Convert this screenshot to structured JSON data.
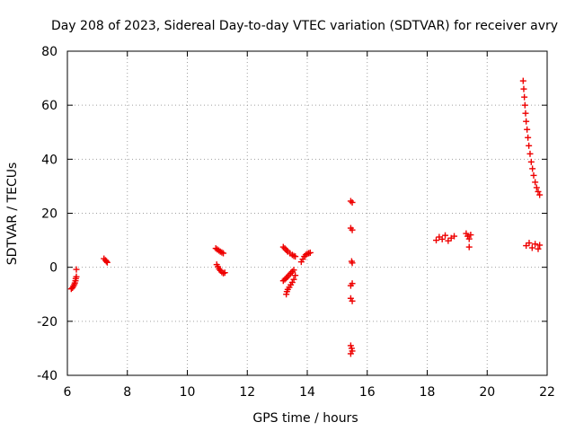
{
  "chart_data": {
    "type": "scatter",
    "title": "Day 208 of 2023, Sidereal Day-to-day VTEC variation (SDTVAR) for receiver avry",
    "xlabel": "GPS time / hours",
    "ylabel": "SDTVAR / TECUs",
    "xlim": [
      6,
      22
    ],
    "ylim": [
      -40,
      80
    ],
    "xticks": [
      6,
      8,
      10,
      12,
      14,
      16,
      18,
      20,
      22
    ],
    "yticks": [
      -40,
      -20,
      0,
      20,
      40,
      60,
      80
    ],
    "grid": true,
    "marker": "+",
    "color": "#ee0000",
    "series": [
      {
        "name": "SDTVAR",
        "points": [
          [
            6.13,
            -8.0
          ],
          [
            6.17,
            -7.6
          ],
          [
            6.2,
            -7.0
          ],
          [
            6.23,
            -6.4
          ],
          [
            6.25,
            -5.8
          ],
          [
            6.27,
            -5.0
          ],
          [
            6.28,
            -4.2
          ],
          [
            6.3,
            -3.5
          ],
          [
            6.3,
            -0.8
          ],
          [
            7.22,
            3.2
          ],
          [
            7.27,
            2.6
          ],
          [
            7.3,
            2.2
          ],
          [
            7.33,
            1.8
          ],
          [
            10.95,
            7.0
          ],
          [
            11.0,
            6.6
          ],
          [
            11.05,
            6.2
          ],
          [
            11.1,
            5.8
          ],
          [
            11.15,
            5.5
          ],
          [
            11.2,
            5.2
          ],
          [
            10.98,
            1.0
          ],
          [
            11.02,
            0.2
          ],
          [
            11.06,
            -0.6
          ],
          [
            11.1,
            -1.2
          ],
          [
            11.15,
            -1.8
          ],
          [
            11.2,
            -2.2
          ],
          [
            11.25,
            -2.0
          ],
          [
            13.2,
            7.5
          ],
          [
            13.25,
            7.0
          ],
          [
            13.3,
            6.4
          ],
          [
            13.35,
            5.8
          ],
          [
            13.42,
            5.2
          ],
          [
            13.5,
            4.6
          ],
          [
            13.55,
            4.2
          ],
          [
            13.6,
            4.0
          ],
          [
            13.2,
            -5.0
          ],
          [
            13.25,
            -4.5
          ],
          [
            13.3,
            -4.0
          ],
          [
            13.35,
            -3.4
          ],
          [
            13.4,
            -2.8
          ],
          [
            13.45,
            -2.2
          ],
          [
            13.5,
            -1.6
          ],
          [
            13.55,
            -1.0
          ],
          [
            13.3,
            -10.0
          ],
          [
            13.32,
            -9.0
          ],
          [
            13.35,
            -8.2
          ],
          [
            13.4,
            -7.4
          ],
          [
            13.45,
            -6.5
          ],
          [
            13.5,
            -5.6
          ],
          [
            13.55,
            -4.5
          ],
          [
            13.6,
            -3.0
          ],
          [
            13.8,
            2.0
          ],
          [
            13.85,
            3.0
          ],
          [
            13.9,
            4.0
          ],
          [
            13.95,
            4.6
          ],
          [
            14.0,
            5.0
          ],
          [
            14.05,
            5.2
          ],
          [
            14.1,
            5.4
          ],
          [
            15.45,
            24.5
          ],
          [
            15.5,
            24.0
          ],
          [
            15.45,
            14.5
          ],
          [
            15.5,
            13.8
          ],
          [
            15.48,
            2.2
          ],
          [
            15.5,
            1.6
          ],
          [
            15.45,
            -6.8
          ],
          [
            15.5,
            -6.0
          ],
          [
            15.45,
            -11.5
          ],
          [
            15.5,
            -12.5
          ],
          [
            15.45,
            -29.0
          ],
          [
            15.48,
            -30.0
          ],
          [
            15.5,
            -31.0
          ],
          [
            15.45,
            -32.0
          ],
          [
            18.3,
            10.0
          ],
          [
            18.4,
            11.2
          ],
          [
            18.5,
            10.4
          ],
          [
            18.6,
            11.8
          ],
          [
            18.7,
            9.8
          ],
          [
            18.8,
            10.8
          ],
          [
            18.9,
            11.5
          ],
          [
            19.3,
            12.5
          ],
          [
            19.35,
            11.5
          ],
          [
            19.4,
            10.5
          ],
          [
            19.45,
            12.0
          ],
          [
            19.4,
            7.5
          ],
          [
            21.2,
            69.0
          ],
          [
            21.22,
            66.0
          ],
          [
            21.24,
            63.0
          ],
          [
            21.26,
            60.0
          ],
          [
            21.28,
            57.0
          ],
          [
            21.3,
            54.0
          ],
          [
            21.33,
            51.0
          ],
          [
            21.36,
            48.0
          ],
          [
            21.39,
            45.0
          ],
          [
            21.43,
            42.0
          ],
          [
            21.47,
            39.0
          ],
          [
            21.51,
            36.5
          ],
          [
            21.55,
            34.0
          ],
          [
            21.6,
            31.5
          ],
          [
            21.65,
            29.5
          ],
          [
            21.7,
            28.0
          ],
          [
            21.75,
            26.8
          ],
          [
            21.3,
            8.0
          ],
          [
            21.4,
            9.0
          ],
          [
            21.5,
            7.2
          ],
          [
            21.6,
            8.6
          ],
          [
            21.7,
            6.8
          ],
          [
            21.75,
            8.2
          ]
        ]
      }
    ]
  }
}
